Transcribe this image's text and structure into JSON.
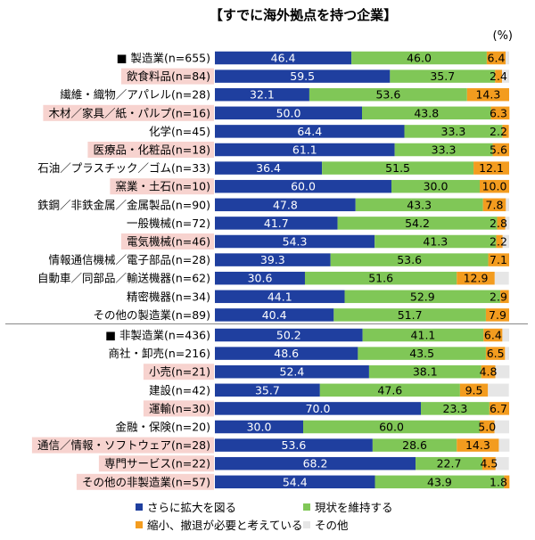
{
  "chart_data": {
    "type": "bar",
    "stacked": true,
    "orientation": "horizontal",
    "normalized_percent": true,
    "title": "【すでに海外拠点を持つ企業】",
    "unit": "(%)",
    "categories": [
      "■ 製造業(n=655)",
      "飲食料品(n=84)",
      "繊維・織物／アパレル(n=28)",
      "木材／家具／紙・パルプ(n=16)",
      "化学(n=45)",
      "医療品・化粧品(n=18)",
      "石油／プラスチック／ゴム(n=33)",
      "窯業・土石(n=10)",
      "鉄鋼／非鉄金属／金属製品(n=90)",
      "一般機械(n=72)",
      "電気機械(n=46)",
      "情報通信機械／電子部品(n=28)",
      "自動車／同部品／輸送機器(n=62)",
      "精密機器(n=34)",
      "その他の製造業(n=89)",
      "■ 非製造業(n=436)",
      "商社・卸売(n=216)",
      "小売(n=21)",
      "建設(n=42)",
      "運輸(n=30)",
      "金融・保険(n=20)",
      "通信／情報・ソフトウェア(n=28)",
      "専門サービス(n=22)",
      "その他の非製造業(n=57)"
    ],
    "highlighted": [
      false,
      true,
      false,
      true,
      false,
      true,
      false,
      true,
      false,
      false,
      true,
      false,
      false,
      false,
      false,
      false,
      false,
      true,
      false,
      true,
      false,
      true,
      true,
      true
    ],
    "series": [
      {
        "name": "さらに拡大を図る",
        "color": "#1f3f9f",
        "values": [
          46.4,
          59.5,
          32.1,
          50.0,
          64.4,
          61.1,
          36.4,
          60.0,
          47.8,
          41.7,
          54.3,
          39.3,
          30.6,
          44.1,
          40.4,
          50.2,
          48.6,
          52.4,
          35.7,
          70.0,
          30.0,
          53.6,
          68.2,
          54.4
        ]
      },
      {
        "name": "現状を維持する",
        "color": "#80c757",
        "values": [
          46.0,
          35.7,
          53.6,
          43.8,
          33.3,
          33.3,
          51.5,
          30.0,
          43.3,
          54.2,
          41.3,
          53.6,
          51.6,
          52.9,
          51.7,
          41.1,
          43.5,
          38.1,
          47.6,
          23.3,
          60.0,
          28.6,
          22.7,
          43.9
        ]
      },
      {
        "name": "縮小、撤退が必要と考えている",
        "color": "#f39c1f",
        "values": [
          6.4,
          2.4,
          14.3,
          6.3,
          2.2,
          5.6,
          12.1,
          10.0,
          7.8,
          2.8,
          2.2,
          7.1,
          12.9,
          2.9,
          7.9,
          6.4,
          6.5,
          4.8,
          9.5,
          6.7,
          5.0,
          14.3,
          4.5,
          1.8
        ]
      },
      {
        "name": "その他",
        "color": "#e6e6e6",
        "values": [
          1.2,
          2.4,
          0.0,
          0.0,
          0.0,
          0.0,
          0.0,
          0.0,
          1.1,
          1.4,
          2.2,
          0.0,
          4.8,
          0.0,
          0.0,
          2.3,
          1.4,
          4.8,
          7.1,
          0.0,
          5.0,
          3.6,
          4.5,
          0.0
        ]
      }
    ],
    "xlim": [
      0,
      100
    ],
    "legend_position": "bottom",
    "highlight_color": "#f7d3cf"
  }
}
